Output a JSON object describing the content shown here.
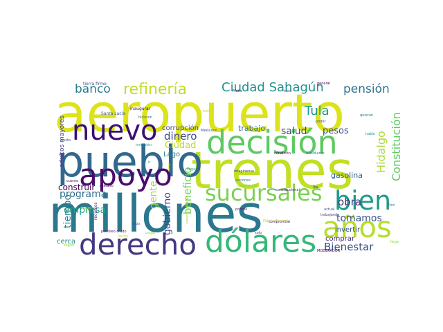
{
  "words": [
    {
      "text": "aeropuerto",
      "color": "#dce319"
    },
    {
      "text": "trenes",
      "color": "#c2df23"
    },
    {
      "text": "millones",
      "color": "#2a788e"
    },
    {
      "text": "pueblo",
      "color": "#31688e"
    },
    {
      "text": "decisión",
      "color": "#5ec962"
    },
    {
      "text": "nuevo",
      "color": "#3b0f70"
    },
    {
      "text": "apoyo",
      "color": "#4b0c6b"
    },
    {
      "text": "derecho",
      "color": "#453781"
    },
    {
      "text": "dólares",
      "color": "#35b779"
    },
    {
      "text": "años",
      "color": "#b5de2b"
    },
    {
      "text": "bien",
      "color": "#1f9a8a"
    },
    {
      "text": "sucursales",
      "color": "#7ad151"
    },
    {
      "text": "refinería",
      "color": "#bddf26"
    },
    {
      "text": "Ciudad Sahagún",
      "color": "#21918c"
    },
    {
      "text": "pensión",
      "color": "#2c728e"
    },
    {
      "text": "banco",
      "color": "#287d8e"
    },
    {
      "text": "Constitución",
      "color": "#5ec962"
    },
    {
      "text": "Tula",
      "color": "#1f988b"
    },
    {
      "text": "Hidalgo",
      "color": "#addc30"
    },
    {
      "text": "Bienestar",
      "color": "#39568c"
    },
    {
      "text": "tomamos",
      "color": "#3b528b"
    },
    {
      "text": "obra",
      "color": "#46337e"
    },
    {
      "text": "programa",
      "color": "#2d708e"
    },
    {
      "text": "empresa",
      "color": "#20a386"
    },
    {
      "text": "dinero",
      "color": "#3e4989"
    },
    {
      "text": "salud",
      "color": "#414487"
    },
    {
      "text": "pesos",
      "color": "#3d4e8a"
    },
    {
      "text": "gasolina",
      "color": "#355f8d"
    },
    {
      "text": "gobierno",
      "color": "#3e4a89"
    },
    {
      "text": "Ciudad",
      "color": "#b8de29"
    },
    {
      "text": "beneficio",
      "color": "#73d056"
    },
    {
      "text": "gente",
      "color": "#a2da37"
    },
    {
      "text": "tiempo",
      "color": "#277f8e"
    },
    {
      "text": "construir",
      "color": "#440154"
    },
    {
      "text": "trabajo",
      "color": "#2e6f8e"
    },
    {
      "text": "corrupción",
      "color": "#3f4788"
    },
    {
      "text": "cerca",
      "color": "#25858e"
    },
    {
      "text": "invertir",
      "color": "#3a538b"
    },
    {
      "text": "comprar",
      "color": "#472f7d"
    },
    {
      "text": "adultos mayores",
      "color": "#433e85"
    },
    {
      "text": "recursos",
      "color": "#482576"
    },
    {
      "text": "Lago",
      "color": "#26828e"
    },
    {
      "text": "tierra firme",
      "color": "#3c4f8a"
    },
    {
      "text": "inaugurar",
      "color": "#440154"
    },
    {
      "text": "Santa Lucía",
      "color": "#3b528b"
    },
    {
      "text": "petróleo crudo",
      "color": "#481b6d"
    },
    {
      "text": "llegar",
      "color": "#29af7f"
    },
    {
      "text": "Imagínense",
      "color": "#443983"
    },
    {
      "text": "condición",
      "color": "#440154"
    },
    {
      "text": "estudiante",
      "color": "#2b748e"
    },
    {
      "text": "constitucional",
      "color": "#482374"
    },
    {
      "text": "compromiso",
      "color": "#440154"
    },
    {
      "text": "pobres",
      "color": "#482878"
    },
    {
      "text": "acciones",
      "color": "#2a788e"
    },
    {
      "text": "Mexicano",
      "color": "#3e4a89"
    },
    {
      "text": "hicieron",
      "color": "#31688e"
    },
    {
      "text": "inversión",
      "color": "#21918c"
    },
    {
      "text": "general",
      "color": "#440154"
    },
    {
      "text": "poder",
      "color": "#3b528b"
    },
    {
      "text": "quieran",
      "color": "#287c8e"
    },
    {
      "text": "hablo",
      "color": "#1f968b"
    },
    {
      "text": "iba",
      "color": "#3f4788"
    },
    {
      "text": "actual",
      "color": "#365c8d"
    },
    {
      "text": "trabajando",
      "color": "#433e85"
    },
    {
      "text": "Tren",
      "color": "#2a788e"
    },
    {
      "text": "llega",
      "color": "#90d743"
    },
    {
      "text": "MODERADOR",
      "color": "#440154"
    },
    {
      "text": "seguir",
      "color": "#8fd744"
    },
    {
      "text": "cabo",
      "color": "#39568c"
    },
    {
      "text": "solo",
      "color": "#453781"
    },
    {
      "text": "gusto",
      "color": "#3b528b"
    },
    {
      "text": "cuento",
      "color": "#471063"
    },
    {
      "text": "gratuito",
      "color": "#440154"
    },
    {
      "text": "Metro",
      "color": "#482878"
    },
    {
      "text": "toda",
      "color": "#3e4989"
    },
    {
      "text": "todo",
      "color": "#c2df23"
    },
    {
      "text": "ir",
      "color": "#1f988b"
    },
    {
      "text": "sabe",
      "color": "#bddf26"
    },
    {
      "text": "cumpliendo",
      "color": "#8bd646"
    },
    {
      "text": "Policía Bancaria",
      "color": "#a8db34"
    },
    {
      "text": "complejo militar",
      "color": "#a5db36"
    },
    {
      "text": "hecho",
      "color": "#cae11f"
    },
    {
      "text": "hacer",
      "color": "#b8de29"
    },
    {
      "text": "pagar",
      "color": "#95d840"
    }
  ]
}
